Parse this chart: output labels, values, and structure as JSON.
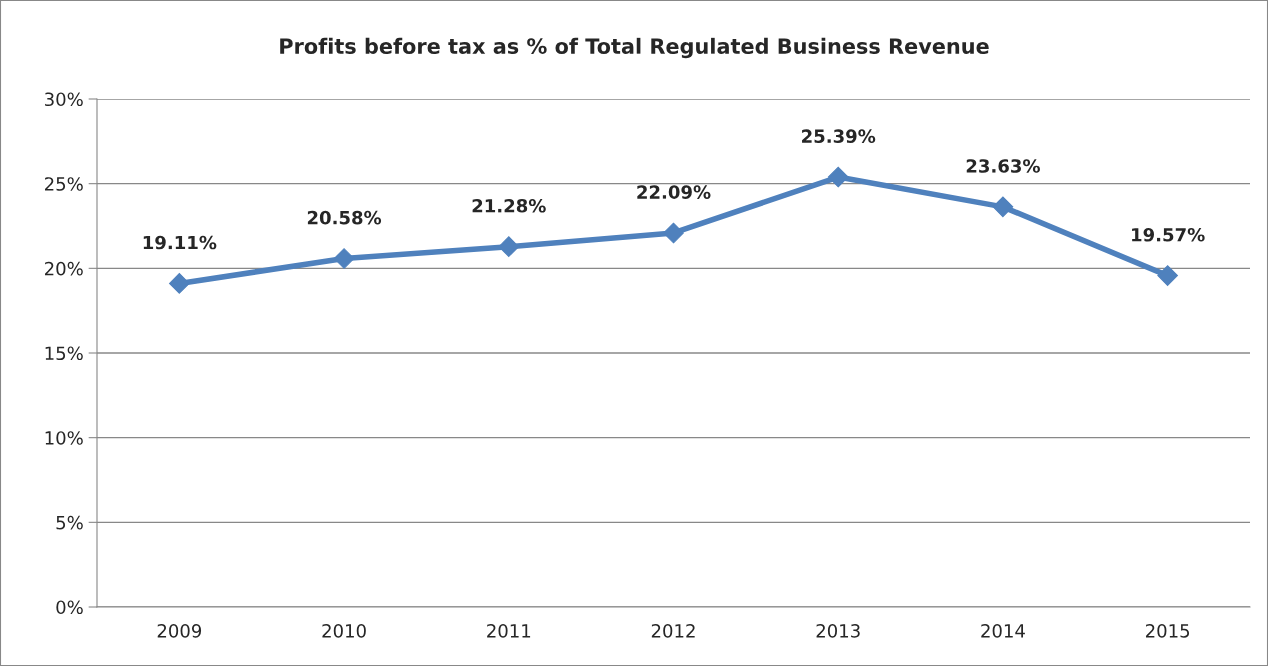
{
  "chart_data": {
    "type": "line",
    "title": "Profits before tax as % of Total Regulated Business Revenue",
    "categories": [
      "2009",
      "2010",
      "2011",
      "2012",
      "2013",
      "2014",
      "2015"
    ],
    "series": [
      {
        "color": "#4f81bd",
        "values": [
          19.11,
          20.58,
          21.28,
          22.09,
          25.39,
          23.63,
          19.57
        ],
        "value_labels": [
          "19.11%",
          "20.58%",
          "21.28%",
          "22.09%",
          "25.39%",
          "23.63%",
          "19.57%"
        ]
      }
    ],
    "ylim": [
      0,
      30
    ],
    "yticks": [
      {
        "value": 0,
        "label": "0%"
      },
      {
        "value": 5,
        "label": "5%"
      },
      {
        "value": 10,
        "label": "10%"
      },
      {
        "value": 15,
        "label": "15%"
      },
      {
        "value": 20,
        "label": "20%"
      },
      {
        "value": 25,
        "label": "25%"
      },
      {
        "value": 30,
        "label": "30%"
      }
    ],
    "grid": "y",
    "marker": "diamond",
    "line_style": "solid",
    "legend": false
  }
}
